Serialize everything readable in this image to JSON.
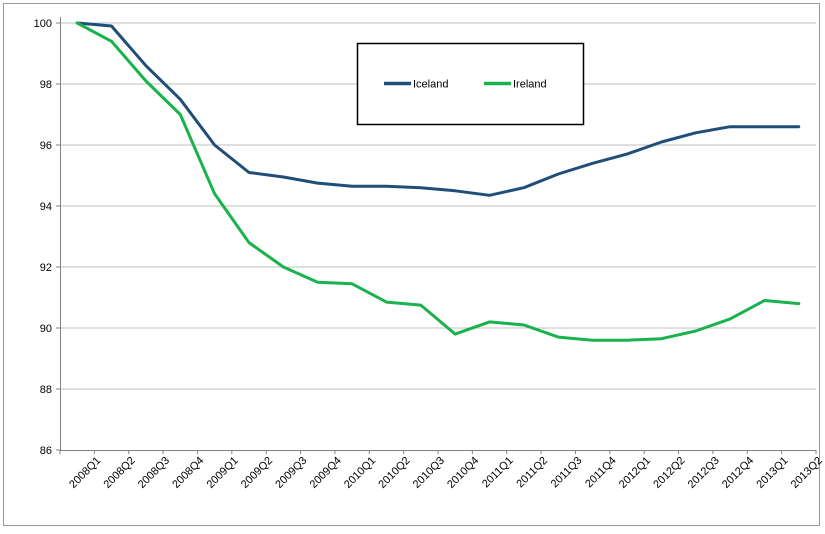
{
  "chart_data": {
    "type": "line",
    "title": "",
    "xlabel": "",
    "ylabel": "",
    "categories": [
      "2008Q1",
      "2008Q2",
      "2008Q3",
      "2008Q4",
      "2009Q1",
      "2009Q2",
      "2009Q3",
      "2009Q4",
      "2010Q1",
      "2010Q2",
      "2010Q3",
      "2010Q4",
      "2011Q1",
      "2011Q2",
      "2011Q3",
      "2011Q4",
      "2012Q1",
      "2012Q2",
      "2012Q3",
      "2012Q4",
      "2013Q1",
      "2013Q2"
    ],
    "series": [
      {
        "name": "Iceland",
        "color": "#1F4E79",
        "values": [
          100,
          99.9,
          98.6,
          97.5,
          96.0,
          95.1,
          94.95,
          94.75,
          94.65,
          94.65,
          94.6,
          94.5,
          94.35,
          94.6,
          95.05,
          95.4,
          95.7,
          96.1,
          96.4,
          96.6,
          96.6,
          96.6
        ]
      },
      {
        "name": "Ireland",
        "color": "#1AB24D",
        "values": [
          100,
          99.4,
          98.1,
          97.0,
          94.4,
          92.8,
          92.0,
          91.5,
          91.45,
          90.85,
          90.75,
          89.8,
          90.2,
          90.1,
          89.7,
          89.6,
          89.6,
          89.65,
          89.9,
          90.3,
          90.9,
          90.8
        ]
      }
    ],
    "ylim": [
      86,
      100
    ],
    "ytick_step": 2,
    "yticks": [
      86,
      88,
      90,
      92,
      94,
      96,
      98,
      100
    ],
    "grid": "horizontal-only",
    "legend_position": "top-center",
    "x_labels_rotation_deg": 45
  },
  "colors": {
    "background": "#FFFFFF",
    "gridline": "#BFBFBF",
    "axis": "#808080",
    "outer_border": "#999999",
    "legend_border": "#000000",
    "legend_fill": "#FFFFFF",
    "text": "#000000",
    "iceland_line": "#1F4E79",
    "ireland_line": "#1AB24D"
  }
}
